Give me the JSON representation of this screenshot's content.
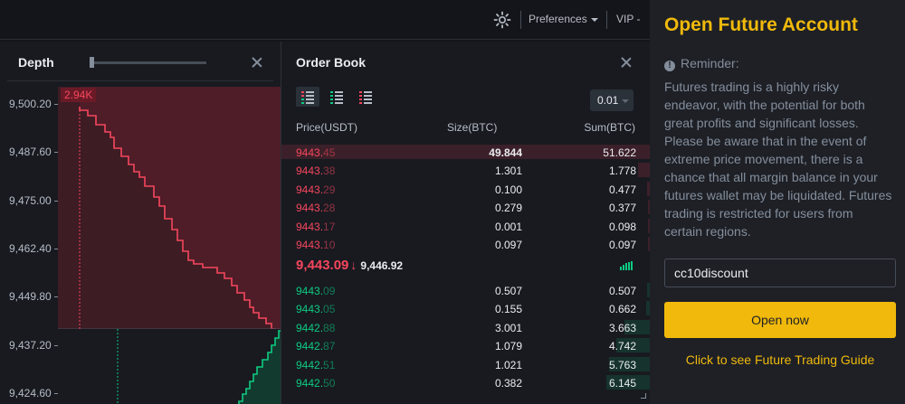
{
  "topbar": {
    "preferences_label": "Preferences",
    "vip_label": "VIP -"
  },
  "depth": {
    "title": "Depth",
    "hover_value": "2.94K",
    "y_ticks": [
      "9,500.20",
      "9,487.60",
      "9,475.00",
      "9,462.40",
      "9,449.80",
      "9,437.20",
      "9,424.60"
    ]
  },
  "orderbook": {
    "title": "Order Book",
    "precision": "0.01",
    "columns": {
      "price": "Price(USDT)",
      "size": "Size(BTC)",
      "sum": "Sum(BTC)"
    },
    "asks": [
      {
        "price_main": "9443.",
        "price_dim": "45",
        "size": "49.844",
        "sum": "51.622",
        "depth_fraction": 1.0
      },
      {
        "price_main": "9443.",
        "price_dim": "38",
        "size": "1.301",
        "sum": "1.778",
        "depth_fraction": 0.034
      },
      {
        "price_main": "9443.",
        "price_dim": "29",
        "size": "0.100",
        "sum": "0.477",
        "depth_fraction": 0.009
      },
      {
        "price_main": "9443.",
        "price_dim": "28",
        "size": "0.279",
        "sum": "0.377",
        "depth_fraction": 0.007
      },
      {
        "price_main": "9443.",
        "price_dim": "17",
        "size": "0.001",
        "sum": "0.098",
        "depth_fraction": 0.002
      },
      {
        "price_main": "9443.",
        "price_dim": "10",
        "size": "0.097",
        "sum": "0.097",
        "depth_fraction": 0.002
      }
    ],
    "last_price": "9,443.09",
    "mark_price": "9,446.92",
    "bids": [
      {
        "price_main": "9443.",
        "price_dim": "09",
        "size": "0.507",
        "sum": "0.507",
        "depth_fraction": 0.01
      },
      {
        "price_main": "9443.",
        "price_dim": "05",
        "size": "0.155",
        "sum": "0.662",
        "depth_fraction": 0.013
      },
      {
        "price_main": "9442.",
        "price_dim": "88",
        "size": "3.001",
        "sum": "3.663",
        "depth_fraction": 0.07
      },
      {
        "price_main": "9442.",
        "price_dim": "87",
        "size": "1.079",
        "sum": "4.742",
        "depth_fraction": 0.092
      },
      {
        "price_main": "9442.",
        "price_dim": "51",
        "size": "1.021",
        "sum": "5.763",
        "depth_fraction": 0.112
      },
      {
        "price_main": "9442.",
        "price_dim": "50",
        "size": "0.382",
        "sum": "6.145",
        "depth_fraction": 0.119
      }
    ]
  },
  "account": {
    "title": "Open Future Account",
    "reminder_label": "Reminder:",
    "description": "Futures trading is a highly risky endeavor, with the potential for both great profits and significant losses. Please be aware that in the event of extreme price movement, there is a chance that all margin balance in your futures wallet may be liquidated. Futures trading is restricted for users from certain regions.",
    "code_value": "cc10discount",
    "open_button": "Open now",
    "guide_link": "Click to see Future Trading Guide"
  },
  "colors": {
    "accent": "#f0b90b",
    "ask": "#f6465d",
    "bid": "#0ecb81"
  }
}
